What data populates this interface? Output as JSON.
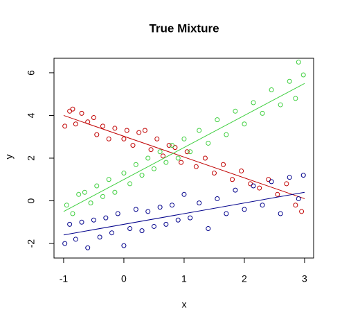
{
  "chart_data": {
    "type": "scatter",
    "title": "True Mixture",
    "x_label": "x",
    "y_label": "y",
    "xlim": [
      -1.16,
      3.15
    ],
    "ylim": [
      -2.68,
      6.68
    ],
    "xticks": [
      -1,
      0,
      1,
      2,
      3
    ],
    "yticks": [
      -2,
      0,
      2,
      4,
      6
    ],
    "series": [
      {
        "color": "#c00000",
        "x": [
          -0.98,
          -0.9,
          -0.85,
          -0.8,
          -0.7,
          -0.6,
          -0.5,
          -0.45,
          -0.35,
          -0.25,
          -0.15,
          0,
          0.05,
          0.15,
          0.25,
          0.35,
          0.45,
          0.55,
          0.65,
          0.75,
          0.85,
          0.95,
          1.05,
          1.2,
          1.35,
          1.5,
          1.65,
          1.8,
          1.95,
          2.1,
          2.25,
          2.4,
          2.55,
          2.7,
          2.85,
          2.95
        ],
        "values": [
          3.5,
          4.2,
          4.3,
          3.6,
          4.1,
          3.7,
          3.9,
          3.1,
          3.5,
          2.9,
          3.4,
          2.9,
          3.3,
          2.6,
          3.2,
          3.3,
          2.4,
          2.9,
          2.1,
          2.6,
          2.5,
          1.8,
          2.3,
          1.6,
          2.0,
          1.3,
          1.7,
          1.0,
          1.4,
          0.8,
          0.6,
          1.0,
          0.3,
          0.8,
          -0.2,
          -0.5
        ],
        "fit": {
          "x": [
            -1,
            3
          ],
          "y": [
            4.0,
            0.1
          ]
        }
      },
      {
        "color": "#3fcf3f",
        "x": [
          -0.95,
          -0.85,
          -0.75,
          -0.65,
          -0.55,
          -0.45,
          -0.35,
          -0.25,
          -0.15,
          0,
          0.1,
          0.2,
          0.3,
          0.4,
          0.5,
          0.6,
          0.7,
          0.8,
          0.9,
          1.0,
          1.1,
          1.25,
          1.4,
          1.55,
          1.7,
          1.85,
          2.0,
          2.15,
          2.3,
          2.45,
          2.6,
          2.75,
          2.85,
          2.9,
          2.98
        ],
        "values": [
          -0.2,
          -0.6,
          0.3,
          0.4,
          -0.1,
          0.7,
          0.2,
          1.0,
          0.4,
          1.3,
          0.8,
          1.7,
          1.2,
          2.0,
          1.5,
          2.3,
          1.8,
          2.6,
          2.0,
          2.9,
          2.3,
          3.3,
          2.7,
          3.8,
          3.1,
          4.2,
          3.6,
          4.6,
          4.1,
          5.2,
          4.5,
          5.6,
          4.8,
          6.5,
          5.9
        ],
        "fit": {
          "x": [
            -1,
            3
          ],
          "y": [
            -0.5,
            5.5
          ]
        }
      },
      {
        "color": "#00008b",
        "x": [
          -0.98,
          -0.9,
          -0.8,
          -0.7,
          -0.6,
          -0.5,
          -0.4,
          -0.3,
          -0.2,
          -0.1,
          0,
          0.1,
          0.2,
          0.3,
          0.4,
          0.5,
          0.6,
          0.7,
          0.8,
          0.9,
          1.0,
          1.1,
          1.25,
          1.4,
          1.55,
          1.7,
          1.85,
          2.0,
          2.15,
          2.3,
          2.45,
          2.6,
          2.75,
          2.9,
          2.98
        ],
        "values": [
          -2.0,
          -1.1,
          -1.8,
          -1.0,
          -2.2,
          -0.9,
          -1.7,
          -0.8,
          -1.5,
          -0.6,
          -2.1,
          -1.3,
          -0.4,
          -1.4,
          -0.5,
          -1.2,
          -0.3,
          -1.1,
          -0.2,
          -0.9,
          0.3,
          -0.8,
          -0.1,
          -1.3,
          0.1,
          -0.6,
          0.5,
          -0.4,
          0.7,
          -0.2,
          0.9,
          -0.6,
          1.1,
          0.1,
          1.2
        ],
        "fit": {
          "x": [
            -1,
            3
          ],
          "y": [
            -1.6,
            0.4
          ]
        }
      }
    ]
  }
}
